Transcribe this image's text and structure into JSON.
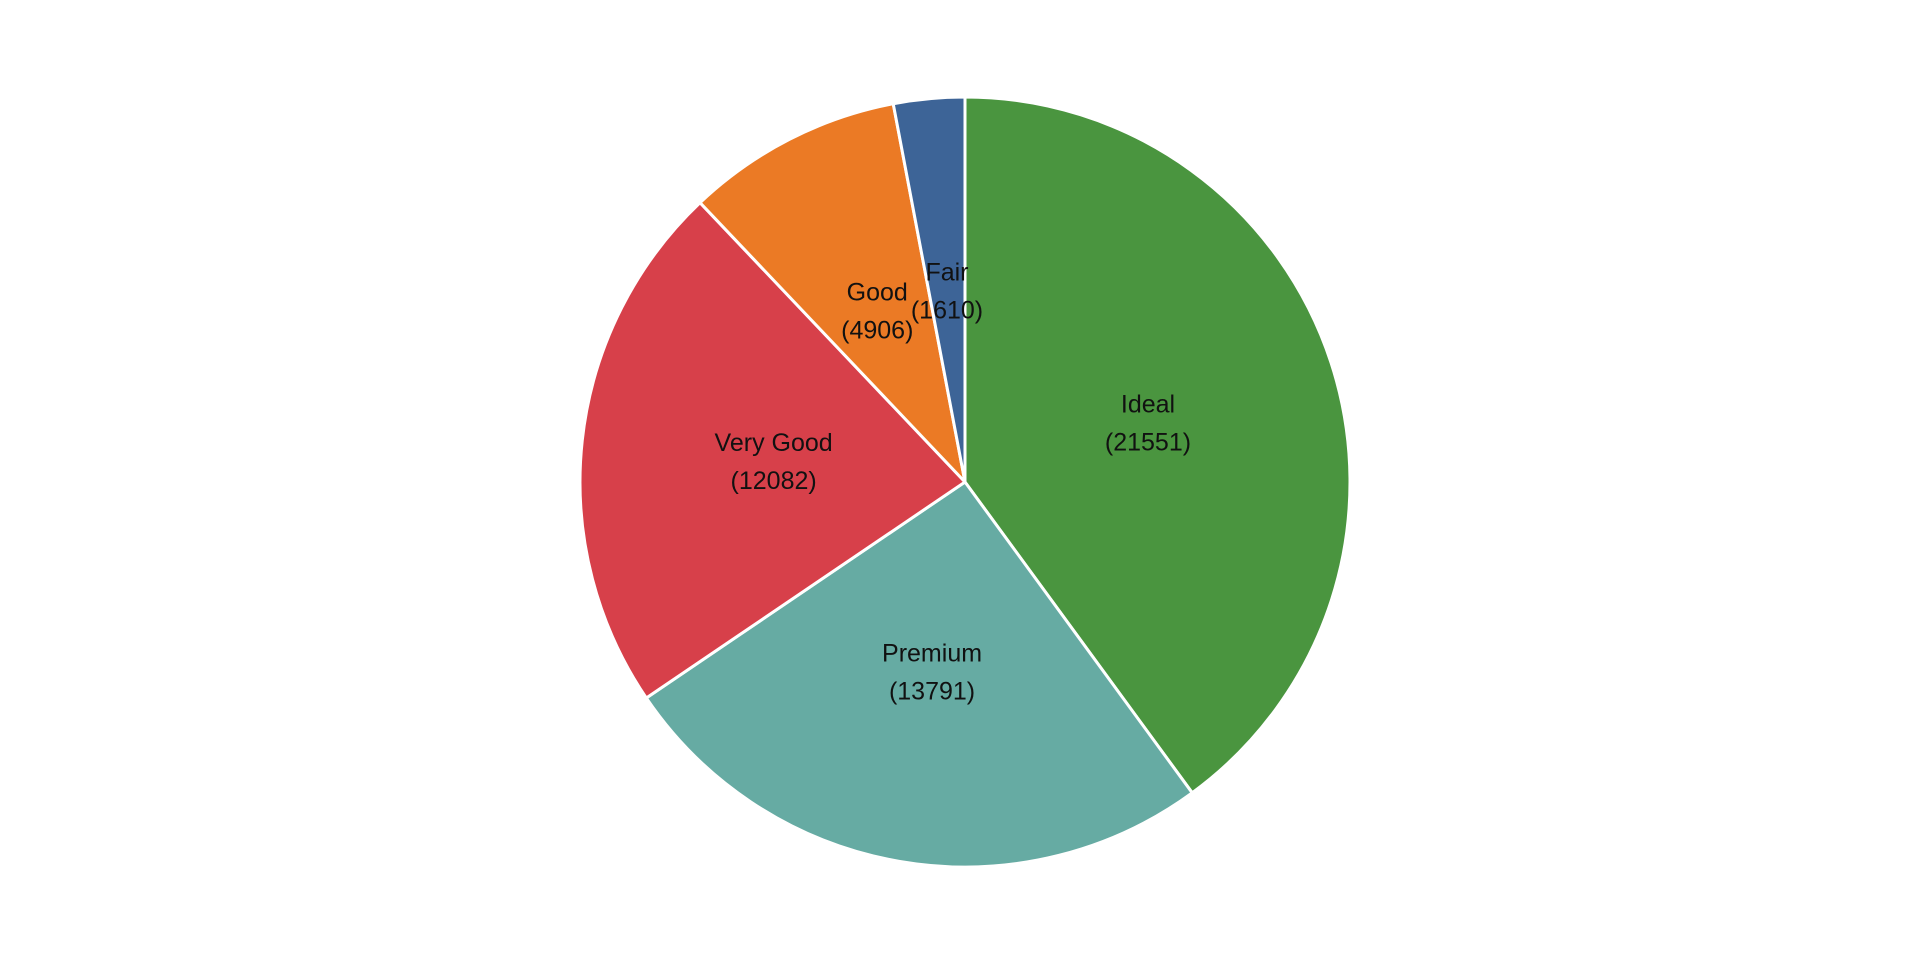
{
  "chart_data": {
    "type": "pie",
    "title": "",
    "categories": [
      "Ideal",
      "Premium",
      "Very Good",
      "Good",
      "Fair"
    ],
    "values": [
      21551,
      13791,
      12082,
      4906,
      1610
    ],
    "value_labels": [
      "(21551)",
      "(13791)",
      "(12082)",
      "(4906)",
      "(1610)"
    ],
    "colors": [
      "#4a953f",
      "#66aba3",
      "#d7404a",
      "#eb7a25",
      "#3d6497"
    ],
    "start_angle": "12 o'clock",
    "direction": "clockwise",
    "legend": "none"
  }
}
